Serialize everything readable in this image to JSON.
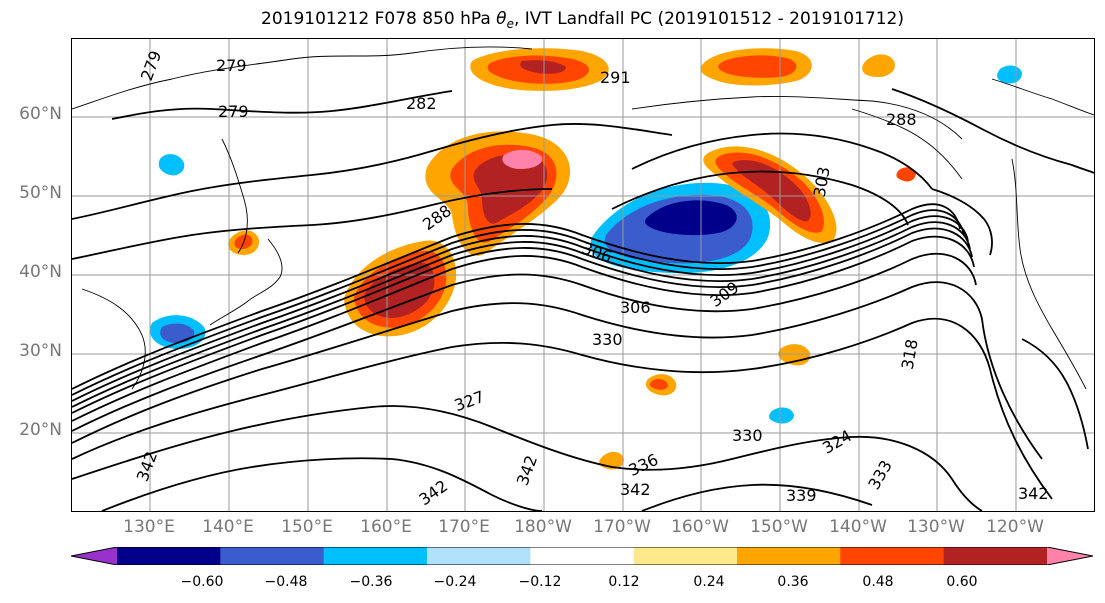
{
  "title": {
    "prefix": "2019101212 F078 850 hPa ",
    "theta": "θ",
    "theta_sub": "e",
    "suffix": ", IVT Landfall PC (2019101512 - 2019101712)"
  },
  "lat_labels": [
    "60°N",
    "50°N",
    "40°N",
    "30°N",
    "20°N"
  ],
  "lon_labels": [
    "130°E",
    "140°E",
    "150°E",
    "160°E",
    "170°E",
    "180°W",
    "170°W",
    "160°W",
    "150°W",
    "140°W",
    "130°W",
    "120°W"
  ],
  "colorbar": {
    "ticks": [
      "−0.60",
      "−0.48",
      "−0.36",
      "−0.24",
      "−0.12",
      "0.12",
      "0.24",
      "0.36",
      "0.48",
      "0.60"
    ],
    "colors": [
      "#9932cc",
      "#00008b",
      "#3a5ccc",
      "#00bfff",
      "#b0e0fa",
      "#ffffff",
      "#ffe98a",
      "#ffa500",
      "#ff4500",
      "#b22222",
      "#ff82ab"
    ]
  },
  "contour_labels": [
    "279",
    "279",
    "282",
    "291",
    "279",
    "288",
    "288",
    "303",
    "309",
    "306",
    "306",
    "330",
    "327",
    "318",
    "324",
    "330",
    "336",
    "342",
    "339",
    "333",
    "342",
    "342",
    "342",
    "342"
  ]
}
